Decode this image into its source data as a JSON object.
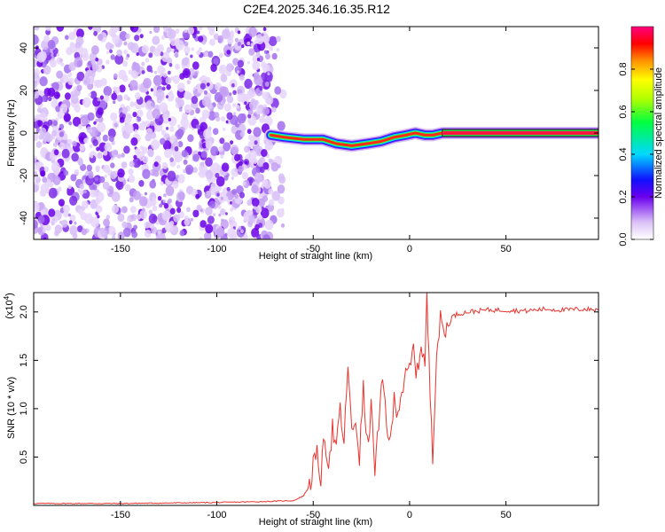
{
  "title": "C2E4.2025.346.16.35.R12",
  "chart_data": [
    {
      "type": "heatmap",
      "name": "spectrogram",
      "xlabel": "Height of straight line (km)",
      "ylabel": "Frequency (Hz)",
      "xlim": [
        -195,
        98
      ],
      "ylim": [
        -50,
        50
      ],
      "xticks": [
        -150,
        -100,
        -50,
        0,
        50
      ],
      "yticks": [
        -40,
        -20,
        0,
        20,
        40
      ],
      "noise_region_x": [
        -195,
        -70
      ],
      "signal_track": {
        "x": [
          -72,
          -65,
          -55,
          -45,
          -38,
          -30,
          -22,
          -15,
          -8,
          -2,
          3,
          8,
          12,
          17,
          30,
          60,
          98
        ],
        "freq": [
          -1,
          -2,
          -3,
          -3,
          -5,
          -6,
          -5,
          -4,
          -2,
          -1,
          0,
          -1,
          -1,
          0,
          0,
          0,
          0
        ]
      },
      "colorbar": {
        "label": "Normalized spectral amplitude",
        "range": [
          0,
          1
        ],
        "ticks": [
          0.0,
          0.2,
          0.4,
          0.6,
          0.8
        ]
      }
    },
    {
      "type": "line",
      "name": "snr",
      "xlabel": "Height of straight line (km)",
      "ylabel": "SNR (10 * v/v)",
      "scale_label": "(x10",
      "scale_exp": "4",
      "xlim": [
        -195,
        98
      ],
      "ylim": [
        0,
        2.2
      ],
      "xticks": [
        -150,
        -100,
        -50,
        0,
        50
      ],
      "yticks": [
        0.5,
        1.0,
        1.5,
        2.0
      ],
      "series": [
        {
          "name": "SNR",
          "color": "#e8352f",
          "x": [
            -195,
            -150,
            -100,
            -75,
            -60,
            -55,
            -52,
            -50,
            -48,
            -46,
            -44,
            -42,
            -40,
            -38,
            -36,
            -34,
            -32,
            -30,
            -28,
            -26,
            -24,
            -22,
            -20,
            -18,
            -16,
            -14,
            -12,
            -10,
            -8,
            -6,
            -4,
            -2,
            0,
            2,
            4,
            6,
            8,
            9,
            10,
            12,
            14,
            16,
            18,
            20,
            22,
            25,
            30,
            40,
            50,
            60,
            70,
            80,
            90,
            98
          ],
          "y": [
            0.02,
            0.02,
            0.03,
            0.04,
            0.05,
            0.1,
            0.2,
            0.4,
            0.5,
            0.3,
            0.7,
            0.45,
            0.8,
            0.55,
            1.0,
            0.6,
            1.5,
            0.7,
            0.9,
            0.5,
            1.2,
            0.6,
            1.0,
            0.4,
            0.8,
            1.3,
            0.9,
            0.6,
            1.1,
            1.0,
            1.2,
            1.3,
            1.4,
            1.6,
            1.35,
            1.7,
            1.45,
            2.15,
            1.5,
            0.55,
            1.6,
            1.9,
            1.8,
            1.85,
            1.95,
            1.98,
            2.0,
            2.02,
            2.02,
            2.01,
            2.03,
            2.02,
            2.03,
            2.02
          ]
        }
      ]
    }
  ]
}
